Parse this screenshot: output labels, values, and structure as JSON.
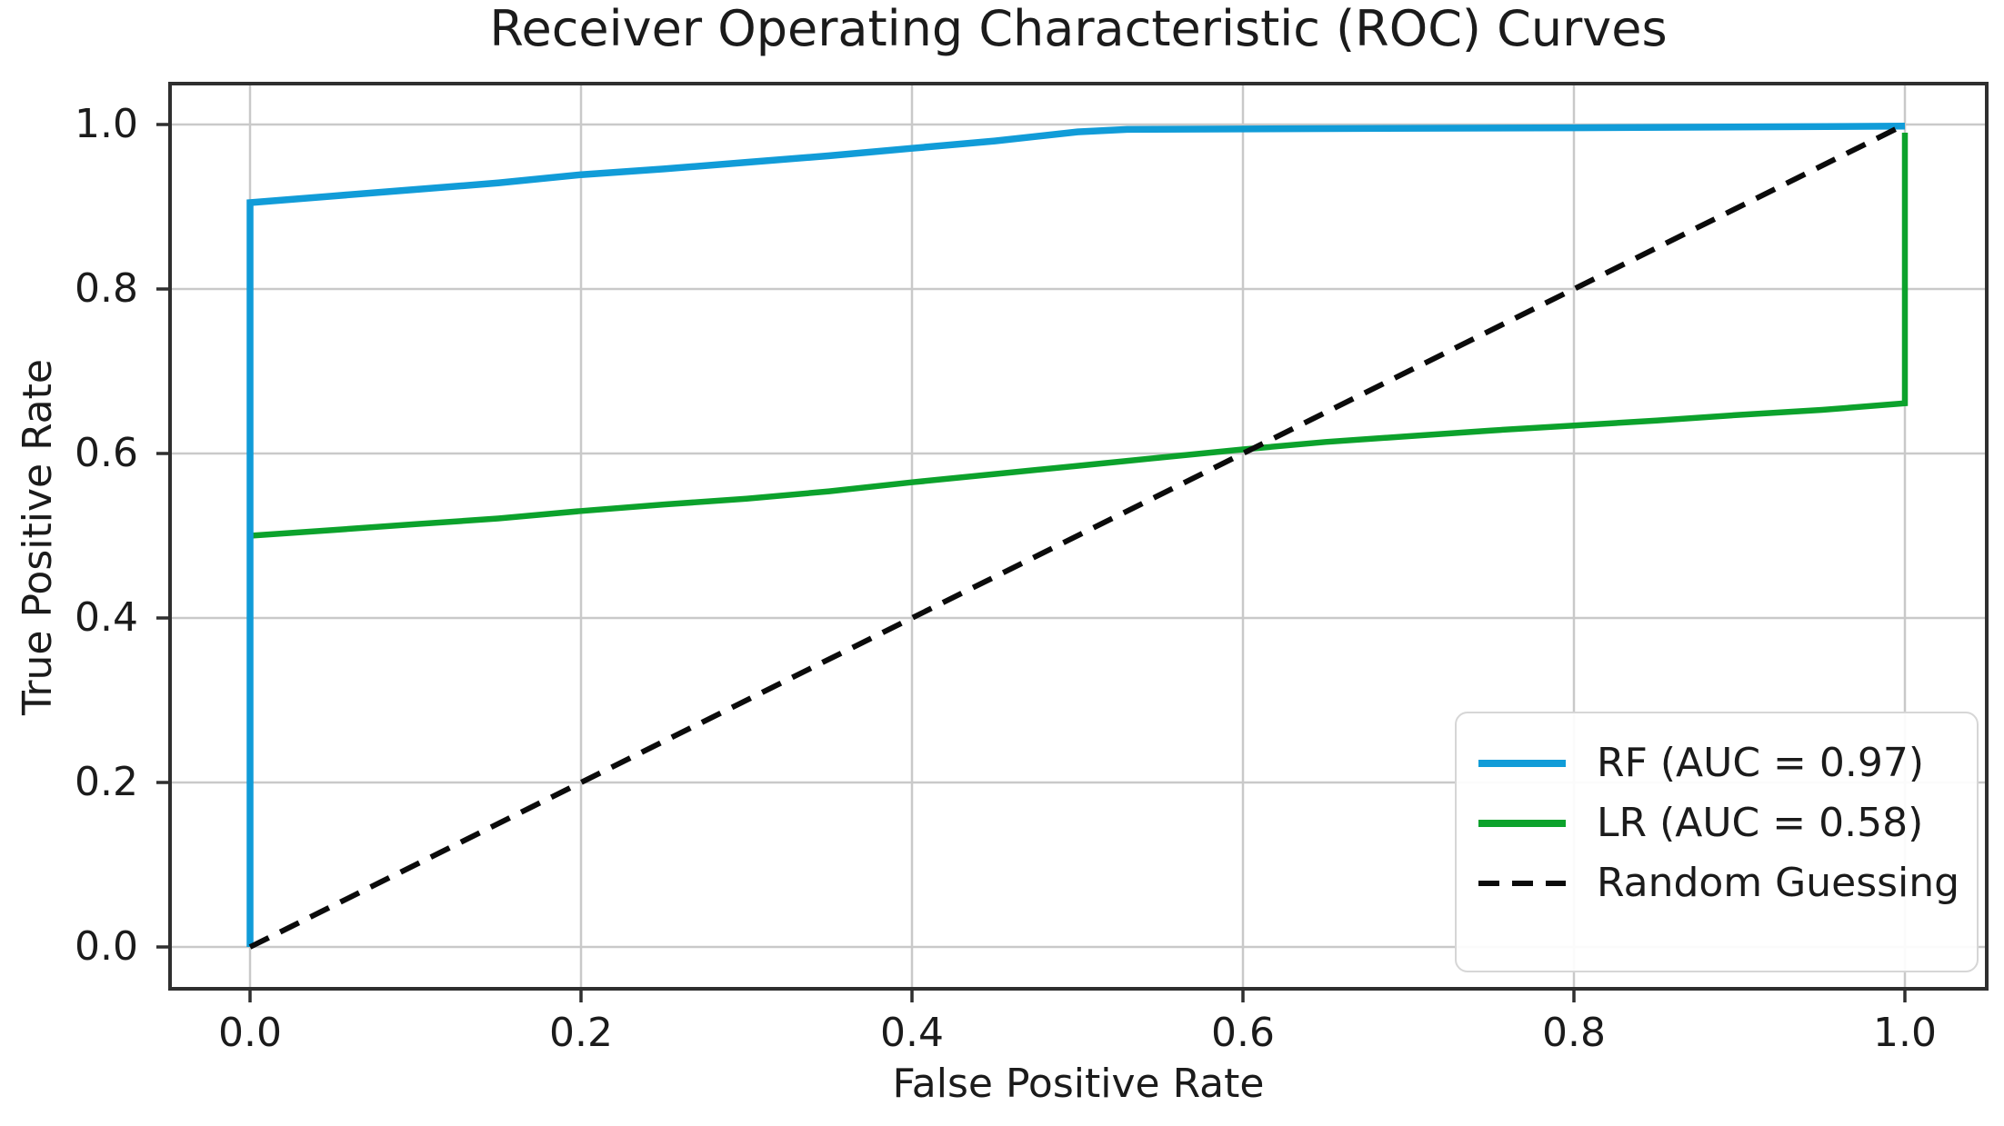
{
  "chart_data": {
    "type": "line",
    "title": "Receiver Operating Characteristic (ROC) Curves",
    "xlabel": "False Positive Rate",
    "ylabel": "True Positive Rate",
    "xlim": [
      0.0,
      1.0
    ],
    "ylim": [
      0.0,
      1.0
    ],
    "xticks": [
      "0.0",
      "0.2",
      "0.4",
      "0.6",
      "0.8",
      "1.0"
    ],
    "yticks": [
      "0.0",
      "0.2",
      "0.4",
      "0.6",
      "0.8",
      "1.0"
    ],
    "grid": true,
    "legend_position": "lower right",
    "colors": {
      "rf": "#119CD8",
      "lr": "#0CA22C",
      "random": "#0b0b0b",
      "grid": "#c9c9c9",
      "spine": "#2f2f2f",
      "text": "#1b1b1b"
    },
    "series": [
      {
        "name": "rf",
        "label": "RF (AUC = 0.97)",
        "auc": 0.97,
        "color": "#119CD8",
        "style": "solid",
        "points": [
          [
            0,
            0
          ],
          [
            0,
            0.905
          ],
          [
            0.05,
            0.913
          ],
          [
            0.1,
            0.921
          ],
          [
            0.15,
            0.929
          ],
          [
            0.2,
            0.939
          ],
          [
            0.25,
            0.946
          ],
          [
            0.3,
            0.954
          ],
          [
            0.35,
            0.962
          ],
          [
            0.4,
            0.971
          ],
          [
            0.45,
            0.98
          ],
          [
            0.5,
            0.991
          ],
          [
            0.53,
            0.994
          ],
          [
            0.65,
            0.995
          ],
          [
            0.8,
            0.996
          ],
          [
            1,
            0.998
          ]
        ]
      },
      {
        "name": "lr",
        "label": "LR (AUC = 0.58)",
        "auc": 0.58,
        "color": "#0CA22C",
        "style": "solid",
        "points": [
          [
            0,
            0.5
          ],
          [
            0.05,
            0.507
          ],
          [
            0.1,
            0.514
          ],
          [
            0.15,
            0.521
          ],
          [
            0.2,
            0.53
          ],
          [
            0.25,
            0.538
          ],
          [
            0.3,
            0.545
          ],
          [
            0.35,
            0.554
          ],
          [
            0.4,
            0.565
          ],
          [
            0.45,
            0.575
          ],
          [
            0.5,
            0.585
          ],
          [
            0.55,
            0.595
          ],
          [
            0.6,
            0.605
          ],
          [
            0.65,
            0.614
          ],
          [
            0.7,
            0.621
          ],
          [
            0.75,
            0.628
          ],
          [
            0.8,
            0.634
          ],
          [
            0.85,
            0.64
          ],
          [
            0.9,
            0.647
          ],
          [
            0.95,
            0.653
          ],
          [
            1,
            0.661
          ],
          [
            1,
            0.99
          ]
        ]
      },
      {
        "name": "random",
        "label": "Random Guessing",
        "color": "#0b0b0b",
        "style": "dashed",
        "points": [
          [
            0,
            0
          ],
          [
            1,
            1
          ]
        ]
      }
    ]
  }
}
